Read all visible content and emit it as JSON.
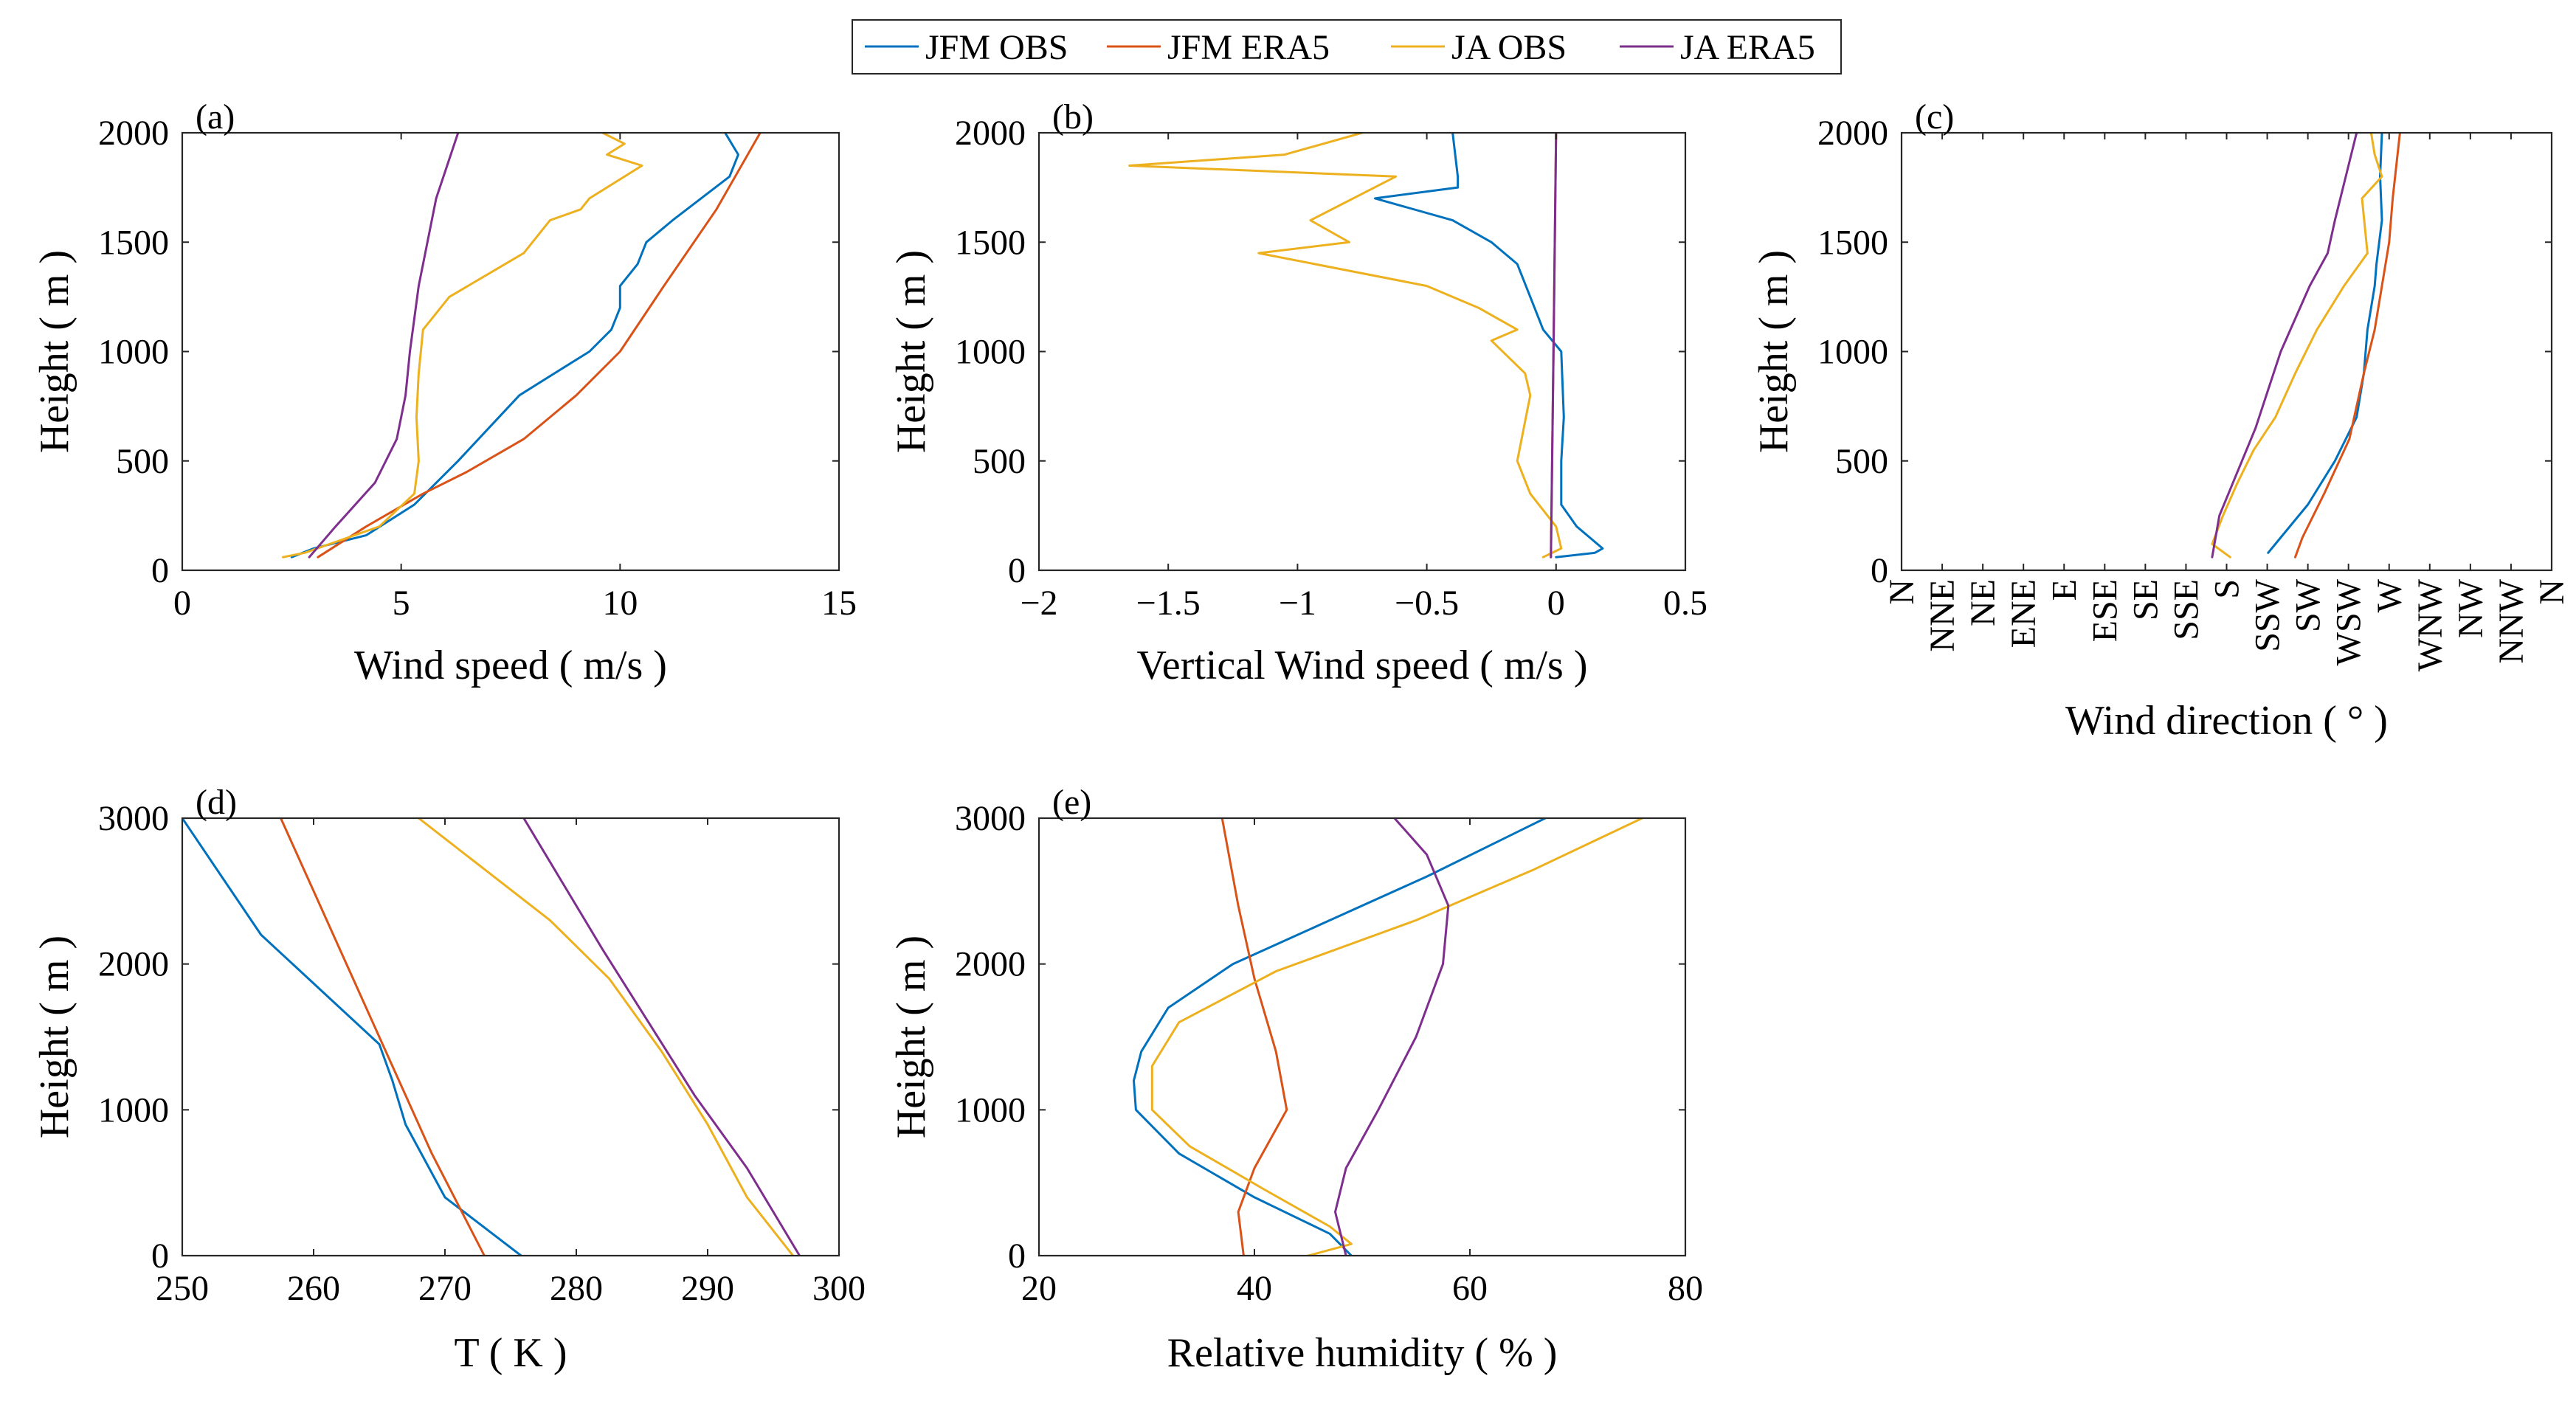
{
  "legend": [
    {
      "name": "JFM OBS",
      "color": "#0072BD"
    },
    {
      "name": "JFM ERA5",
      "color": "#D95319"
    },
    {
      "name": "JA OBS",
      "color": "#EDB120"
    },
    {
      "name": "JA ERA5",
      "color": "#7E2F8E"
    }
  ],
  "chart_data": [
    {
      "panel": "(a)",
      "type": "line",
      "xlabel": "Wind speed ( m/s )",
      "ylabel": "Height ( m )",
      "xlim": [
        0,
        15
      ],
      "ylim": [
        0,
        2000
      ],
      "xticks": [
        0,
        5,
        10,
        15
      ],
      "xtick_labels": [
        "0",
        "5",
        "10",
        "15"
      ],
      "yticks": [
        0,
        500,
        1000,
        1500,
        2000
      ],
      "ytick_labels": [
        "0",
        "500",
        "1000",
        "1500",
        "2000"
      ],
      "series": [
        {
          "name": "JFM OBS",
          "x": [
            2.5,
            3.0,
            4.2,
            5.3,
            6.3,
            7.0,
            7.7,
            8.5,
            9.3,
            9.8,
            10.0,
            10.0,
            10.4,
            10.6,
            11.2,
            12.5,
            12.7,
            12.4
          ],
          "y": [
            60,
            100,
            160,
            300,
            500,
            650,
            800,
            900,
            1000,
            1100,
            1200,
            1300,
            1400,
            1500,
            1600,
            1800,
            1900,
            2000
          ]
        },
        {
          "name": "JFM ERA5",
          "x": [
            3.1,
            4.2,
            5.5,
            6.5,
            7.8,
            9.0,
            10.0,
            11.0,
            12.2,
            13.2
          ],
          "y": [
            60,
            200,
            350,
            450,
            600,
            800,
            1000,
            1300,
            1650,
            2000
          ]
        },
        {
          "name": "JA OBS",
          "x": [
            2.3,
            2.8,
            4.5,
            5.3,
            5.4,
            5.35,
            5.4,
            5.5,
            6.1,
            7.8,
            8.4,
            9.1,
            9.3,
            10.5,
            9.7,
            10.1,
            9.6
          ],
          "y": [
            60,
            80,
            200,
            350,
            500,
            700,
            900,
            1100,
            1250,
            1450,
            1600,
            1650,
            1700,
            1850,
            1900,
            1950,
            2000
          ]
        },
        {
          "name": "JA ERA5",
          "x": [
            2.9,
            3.5,
            4.4,
            4.9,
            5.1,
            5.2,
            5.4,
            5.8,
            6.3
          ],
          "y": [
            60,
            200,
            400,
            600,
            800,
            1000,
            1300,
            1700,
            2000
          ]
        }
      ]
    },
    {
      "panel": "(b)",
      "type": "line",
      "xlabel": "Vertical Wind speed ( m/s )",
      "ylabel": "Height ( m )",
      "xlim": [
        -2,
        0.5
      ],
      "ylim": [
        0,
        2000
      ],
      "xticks": [
        -2,
        -1.5,
        -1,
        -0.5,
        0,
        0.5
      ],
      "xtick_labels": [
        "−2",
        "−1.5",
        "−1",
        "−0.5",
        "0",
        "0.5"
      ],
      "yticks": [
        0,
        500,
        1000,
        1500,
        2000
      ],
      "ytick_labels": [
        "0",
        "500",
        "1000",
        "1500",
        "2000"
      ],
      "series": [
        {
          "name": "JFM OBS",
          "x": [
            0.0,
            0.15,
            0.18,
            0.08,
            0.02,
            0.02,
            0.03,
            0.02,
            -0.05,
            -0.1,
            -0.15,
            -0.25,
            -0.4,
            -0.7,
            -0.38,
            -0.38,
            -0.4
          ],
          "y": [
            60,
            80,
            100,
            200,
            300,
            500,
            700,
            1000,
            1100,
            1250,
            1400,
            1500,
            1600,
            1700,
            1750,
            1800,
            2000
          ]
        },
        {
          "name": "JFM ERA5",
          "x": [
            -0.02,
            -0.01,
            0.0
          ],
          "y": [
            60,
            1000,
            2000
          ]
        },
        {
          "name": "JA OBS",
          "x": [
            -0.05,
            0.02,
            0.0,
            -0.1,
            -0.15,
            -0.1,
            -0.12,
            -0.25,
            -0.15,
            -0.3,
            -0.5,
            -1.15,
            -0.8,
            -0.95,
            -0.62,
            -1.65,
            -1.05,
            -0.75
          ],
          "y": [
            60,
            100,
            200,
            350,
            500,
            800,
            900,
            1050,
            1100,
            1200,
            1300,
            1450,
            1500,
            1600,
            1800,
            1850,
            1900,
            2000
          ]
        },
        {
          "name": "JA ERA5",
          "x": [
            -0.02,
            -0.01,
            0.0
          ],
          "y": [
            60,
            1000,
            2000
          ]
        }
      ]
    },
    {
      "panel": "(c)",
      "type": "line",
      "xlabel": "Wind direction ( ° )",
      "ylabel": "Height ( m )",
      "xlim": [
        0,
        360
      ],
      "ylim": [
        0,
        2000
      ],
      "xticks": [
        0,
        22.5,
        45,
        67.5,
        90,
        112.5,
        135,
        157.5,
        180,
        202.5,
        225,
        247.5,
        270,
        292.5,
        315,
        337.5,
        360
      ],
      "xtick_labels": [
        "N",
        "NNE",
        "NE",
        "ENE",
        "E",
        "ESE",
        "SE",
        "SSE",
        "S",
        "SSW",
        "SW",
        "WSW",
        "W",
        "WNW",
        "NW",
        "NNW",
        "N"
      ],
      "yticks": [
        0,
        500,
        1000,
        1500,
        2000
      ],
      "ytick_labels": [
        "0",
        "500",
        "1000",
        "1500",
        "2000"
      ],
      "series": [
        {
          "name": "JFM OBS",
          "x": [
            203,
            210,
            225,
            240,
            252,
            256,
            258,
            262,
            263,
            266,
            265,
            266
          ],
          "y": [
            80,
            150,
            300,
            500,
            700,
            900,
            1100,
            1300,
            1400,
            1600,
            1800,
            2000
          ]
        },
        {
          "name": "JFM ERA5",
          "x": [
            218,
            222,
            234,
            248,
            256,
            262,
            266,
            270,
            272,
            276
          ],
          "y": [
            60,
            150,
            350,
            600,
            900,
            1100,
            1300,
            1500,
            1700,
            2000
          ]
        },
        {
          "name": "JA OBS",
          "x": [
            182,
            172,
            178,
            186,
            195,
            207,
            218,
            230,
            245,
            258,
            255,
            266,
            262,
            260
          ],
          "y": [
            60,
            120,
            250,
            400,
            550,
            700,
            900,
            1100,
            1300,
            1450,
            1700,
            1800,
            1900,
            2000
          ]
        },
        {
          "name": "JA ERA5",
          "x": [
            172,
            176,
            186,
            196,
            204,
            210,
            218,
            226,
            236,
            240,
            246,
            252
          ],
          "y": [
            60,
            250,
            450,
            650,
            850,
            1000,
            1150,
            1300,
            1450,
            1600,
            1800,
            2000
          ]
        }
      ]
    },
    {
      "panel": "(d)",
      "type": "line",
      "xlabel": "T ( K )",
      "ylabel": "Height ( m )",
      "xlim": [
        250,
        300
      ],
      "ylim": [
        0,
        3000
      ],
      "xticks": [
        250,
        260,
        270,
        280,
        290,
        300
      ],
      "xtick_labels": [
        "250",
        "260",
        "270",
        "280",
        "290",
        "300"
      ],
      "yticks": [
        0,
        1000,
        2000,
        3000
      ],
      "ytick_labels": [
        "0",
        "1000",
        "2000",
        "3000"
      ],
      "series": [
        {
          "name": "JFM OBS",
          "x": [
            275.8,
            270,
            267,
            266,
            265,
            262,
            259,
            256,
            253,
            250
          ],
          "y": [
            0,
            400,
            900,
            1200,
            1450,
            1700,
            1950,
            2200,
            2600,
            3000
          ]
        },
        {
          "name": "JFM ERA5",
          "x": [
            273,
            269,
            266,
            263,
            260,
            257.5
          ],
          "y": [
            0,
            700,
            1300,
            1900,
            2500,
            3000
          ]
        },
        {
          "name": "JA OBS",
          "x": [
            296.5,
            293,
            290,
            286.5,
            282.5,
            278,
            273,
            268
          ],
          "y": [
            0,
            400,
            900,
            1400,
            1900,
            2300,
            2650,
            3000
          ]
        },
        {
          "name": "JA ERA5",
          "x": [
            297,
            293,
            289,
            285.5,
            282,
            279,
            276
          ],
          "y": [
            0,
            600,
            1100,
            1600,
            2100,
            2550,
            3000
          ]
        }
      ]
    },
    {
      "panel": "(e)",
      "type": "line",
      "xlabel": "Relative humidity ( % )",
      "ylabel": "Height ( m )",
      "xlim": [
        20,
        80
      ],
      "ylim": [
        0,
        3000
      ],
      "xticks": [
        20,
        40,
        60,
        80
      ],
      "xtick_labels": [
        "20",
        "40",
        "60",
        "80"
      ],
      "yticks": [
        0,
        1000,
        2000,
        3000
      ],
      "ytick_labels": [
        "0",
        "1000",
        "2000",
        "3000"
      ],
      "series": [
        {
          "name": "JFM OBS",
          "x": [
            49,
            47,
            40,
            33,
            29,
            28.8,
            29.5,
            32,
            38,
            47,
            56,
            67
          ],
          "y": [
            0,
            150,
            400,
            700,
            1000,
            1200,
            1400,
            1700,
            2000,
            2300,
            2600,
            3000
          ]
        },
        {
          "name": "JFM ERA5",
          "x": [
            39,
            38.5,
            40,
            43,
            42,
            40,
            38.5,
            37
          ],
          "y": [
            0,
            300,
            600,
            1000,
            1400,
            1900,
            2400,
            3000
          ]
        },
        {
          "name": "JA OBS",
          "x": [
            45,
            49,
            47,
            41,
            34,
            30.5,
            30.5,
            33,
            42,
            55,
            66,
            76
          ],
          "y": [
            0,
            80,
            200,
            450,
            750,
            1000,
            1300,
            1600,
            1950,
            2300,
            2650,
            3000
          ]
        },
        {
          "name": "JA ERA5",
          "x": [
            48.5,
            47.5,
            48.5,
            51.5,
            55,
            57.5,
            58,
            56,
            53
          ],
          "y": [
            0,
            300,
            600,
            1000,
            1500,
            2000,
            2400,
            2750,
            3000
          ]
        }
      ]
    }
  ]
}
